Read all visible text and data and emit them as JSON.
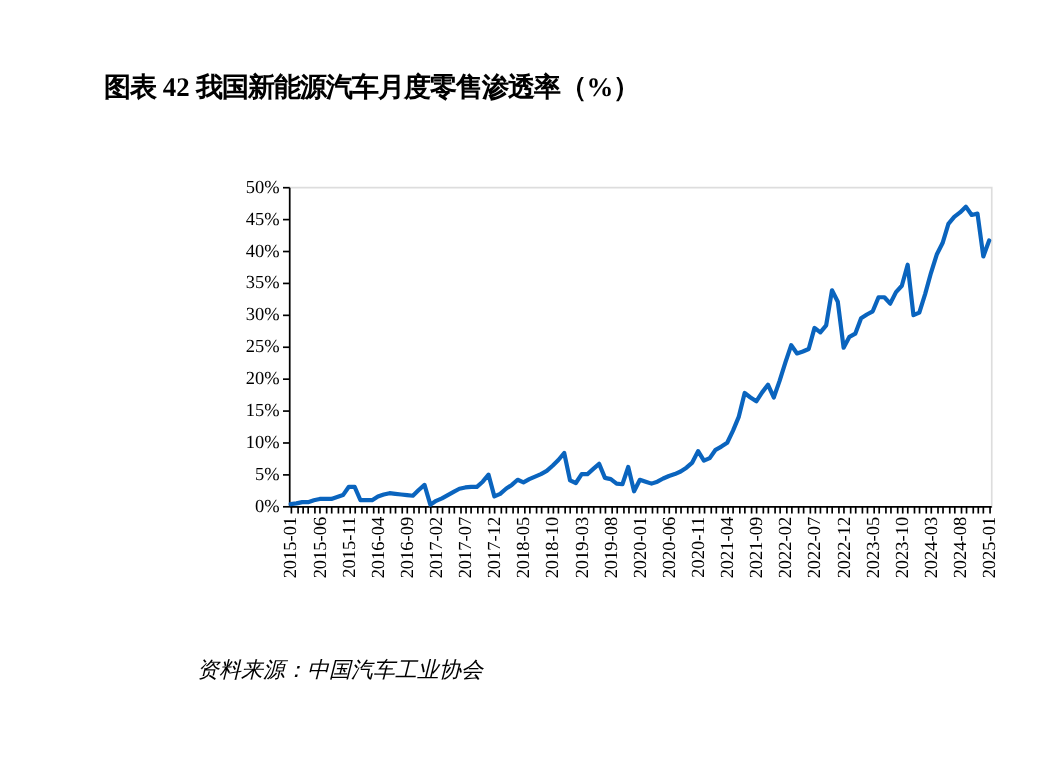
{
  "chart_data": {
    "type": "line",
    "title": "图表 42   我国新能源汽车月度零售渗透率（%）",
    "categories": [
      "2015-01",
      null,
      null,
      null,
      null,
      "2015-06",
      null,
      null,
      null,
      null,
      "2015-11",
      null,
      null,
      null,
      null,
      "2016-04",
      null,
      null,
      null,
      null,
      "2016-09",
      null,
      null,
      null,
      null,
      "2017-02",
      null,
      null,
      null,
      null,
      "2017-07",
      null,
      null,
      null,
      null,
      "2017-12",
      null,
      null,
      null,
      null,
      "2018-05",
      null,
      null,
      null,
      null,
      "2018-10",
      null,
      null,
      null,
      null,
      "2019-03",
      null,
      null,
      null,
      null,
      "2019-08",
      null,
      null,
      null,
      null,
      "2020-01",
      null,
      null,
      null,
      null,
      "2020-06",
      null,
      null,
      null,
      null,
      "2020-11",
      null,
      null,
      null,
      null,
      "2021-04",
      null,
      null,
      null,
      null,
      "2021-09",
      null,
      null,
      null,
      null,
      "2022-02",
      null,
      null,
      null,
      null,
      "2022-07",
      null,
      null,
      null,
      null,
      "2022-12",
      null,
      null,
      null,
      null,
      "2023-05",
      null,
      null,
      null,
      null,
      "2023-10",
      null,
      null,
      null,
      null,
      "2024-03",
      null,
      null,
      null,
      null,
      "2024-08",
      null,
      null,
      null,
      null,
      "2025-01"
    ],
    "series": [
      {
        "color": "#0a64be",
        "values": [
          0.3,
          0.4,
          0.6,
          0.6,
          0.9,
          1.1,
          1.1,
          1.1,
          1.4,
          1.7,
          3.0,
          3.0,
          0.9,
          0.9,
          0.9,
          1.5,
          1.8,
          2.0,
          1.9,
          1.8,
          1.7,
          1.6,
          2.5,
          3.3,
          0.2,
          0.8,
          1.2,
          1.7,
          2.2,
          2.7,
          2.9,
          3.0,
          3.0,
          3.8,
          4.9,
          1.5,
          1.9,
          2.7,
          3.3,
          4.1,
          3.7,
          4.2,
          4.6,
          5.0,
          5.5,
          6.3,
          7.2,
          8.3,
          4.0,
          3.6,
          5.0,
          5.0,
          5.8,
          6.6,
          4.4,
          4.2,
          3.5,
          3.4,
          6.1,
          2.3,
          4.1,
          3.8,
          3.5,
          3.8,
          4.3,
          4.7,
          5.0,
          5.4,
          6.0,
          6.8,
          8.6,
          7.1,
          7.5,
          8.8,
          9.3,
          9.9,
          11.8,
          14.0,
          17.7,
          17.0,
          16.4,
          17.8,
          19.0,
          17.0,
          19.6,
          22.5,
          25.2,
          23.9,
          24.2,
          24.6,
          27.9,
          27.2,
          28.3,
          33.8,
          32.0,
          24.8,
          26.5,
          27.0,
          29.4,
          30.0,
          30.5,
          32.7,
          32.7,
          31.7,
          33.5,
          34.5,
          37.8,
          29.9,
          30.3,
          33.2,
          36.5,
          39.4,
          41.2,
          44.2,
          45.3,
          46.0,
          46.9,
          45.6,
          45.8,
          39.1,
          41.6
        ]
      }
    ],
    "ylim": [
      0,
      50
    ],
    "yticks": [
      {
        "value": 0,
        "label": "0%"
      },
      {
        "value": 5,
        "label": "5%"
      },
      {
        "value": 10,
        "label": "10%"
      },
      {
        "value": 15,
        "label": "15%"
      },
      {
        "value": 20,
        "label": "20%"
      },
      {
        "value": 25,
        "label": "25%"
      },
      {
        "value": 30,
        "label": "30%"
      },
      {
        "value": 35,
        "label": "35%"
      },
      {
        "value": 40,
        "label": "40%"
      },
      {
        "value": 45,
        "label": "45%"
      },
      {
        "value": 50,
        "label": "50%"
      }
    ],
    "grid": false,
    "legend": false,
    "marker": "none",
    "line_style": "solid",
    "annotations": [
      "资料来源：中国汽车工业协会"
    ]
  }
}
